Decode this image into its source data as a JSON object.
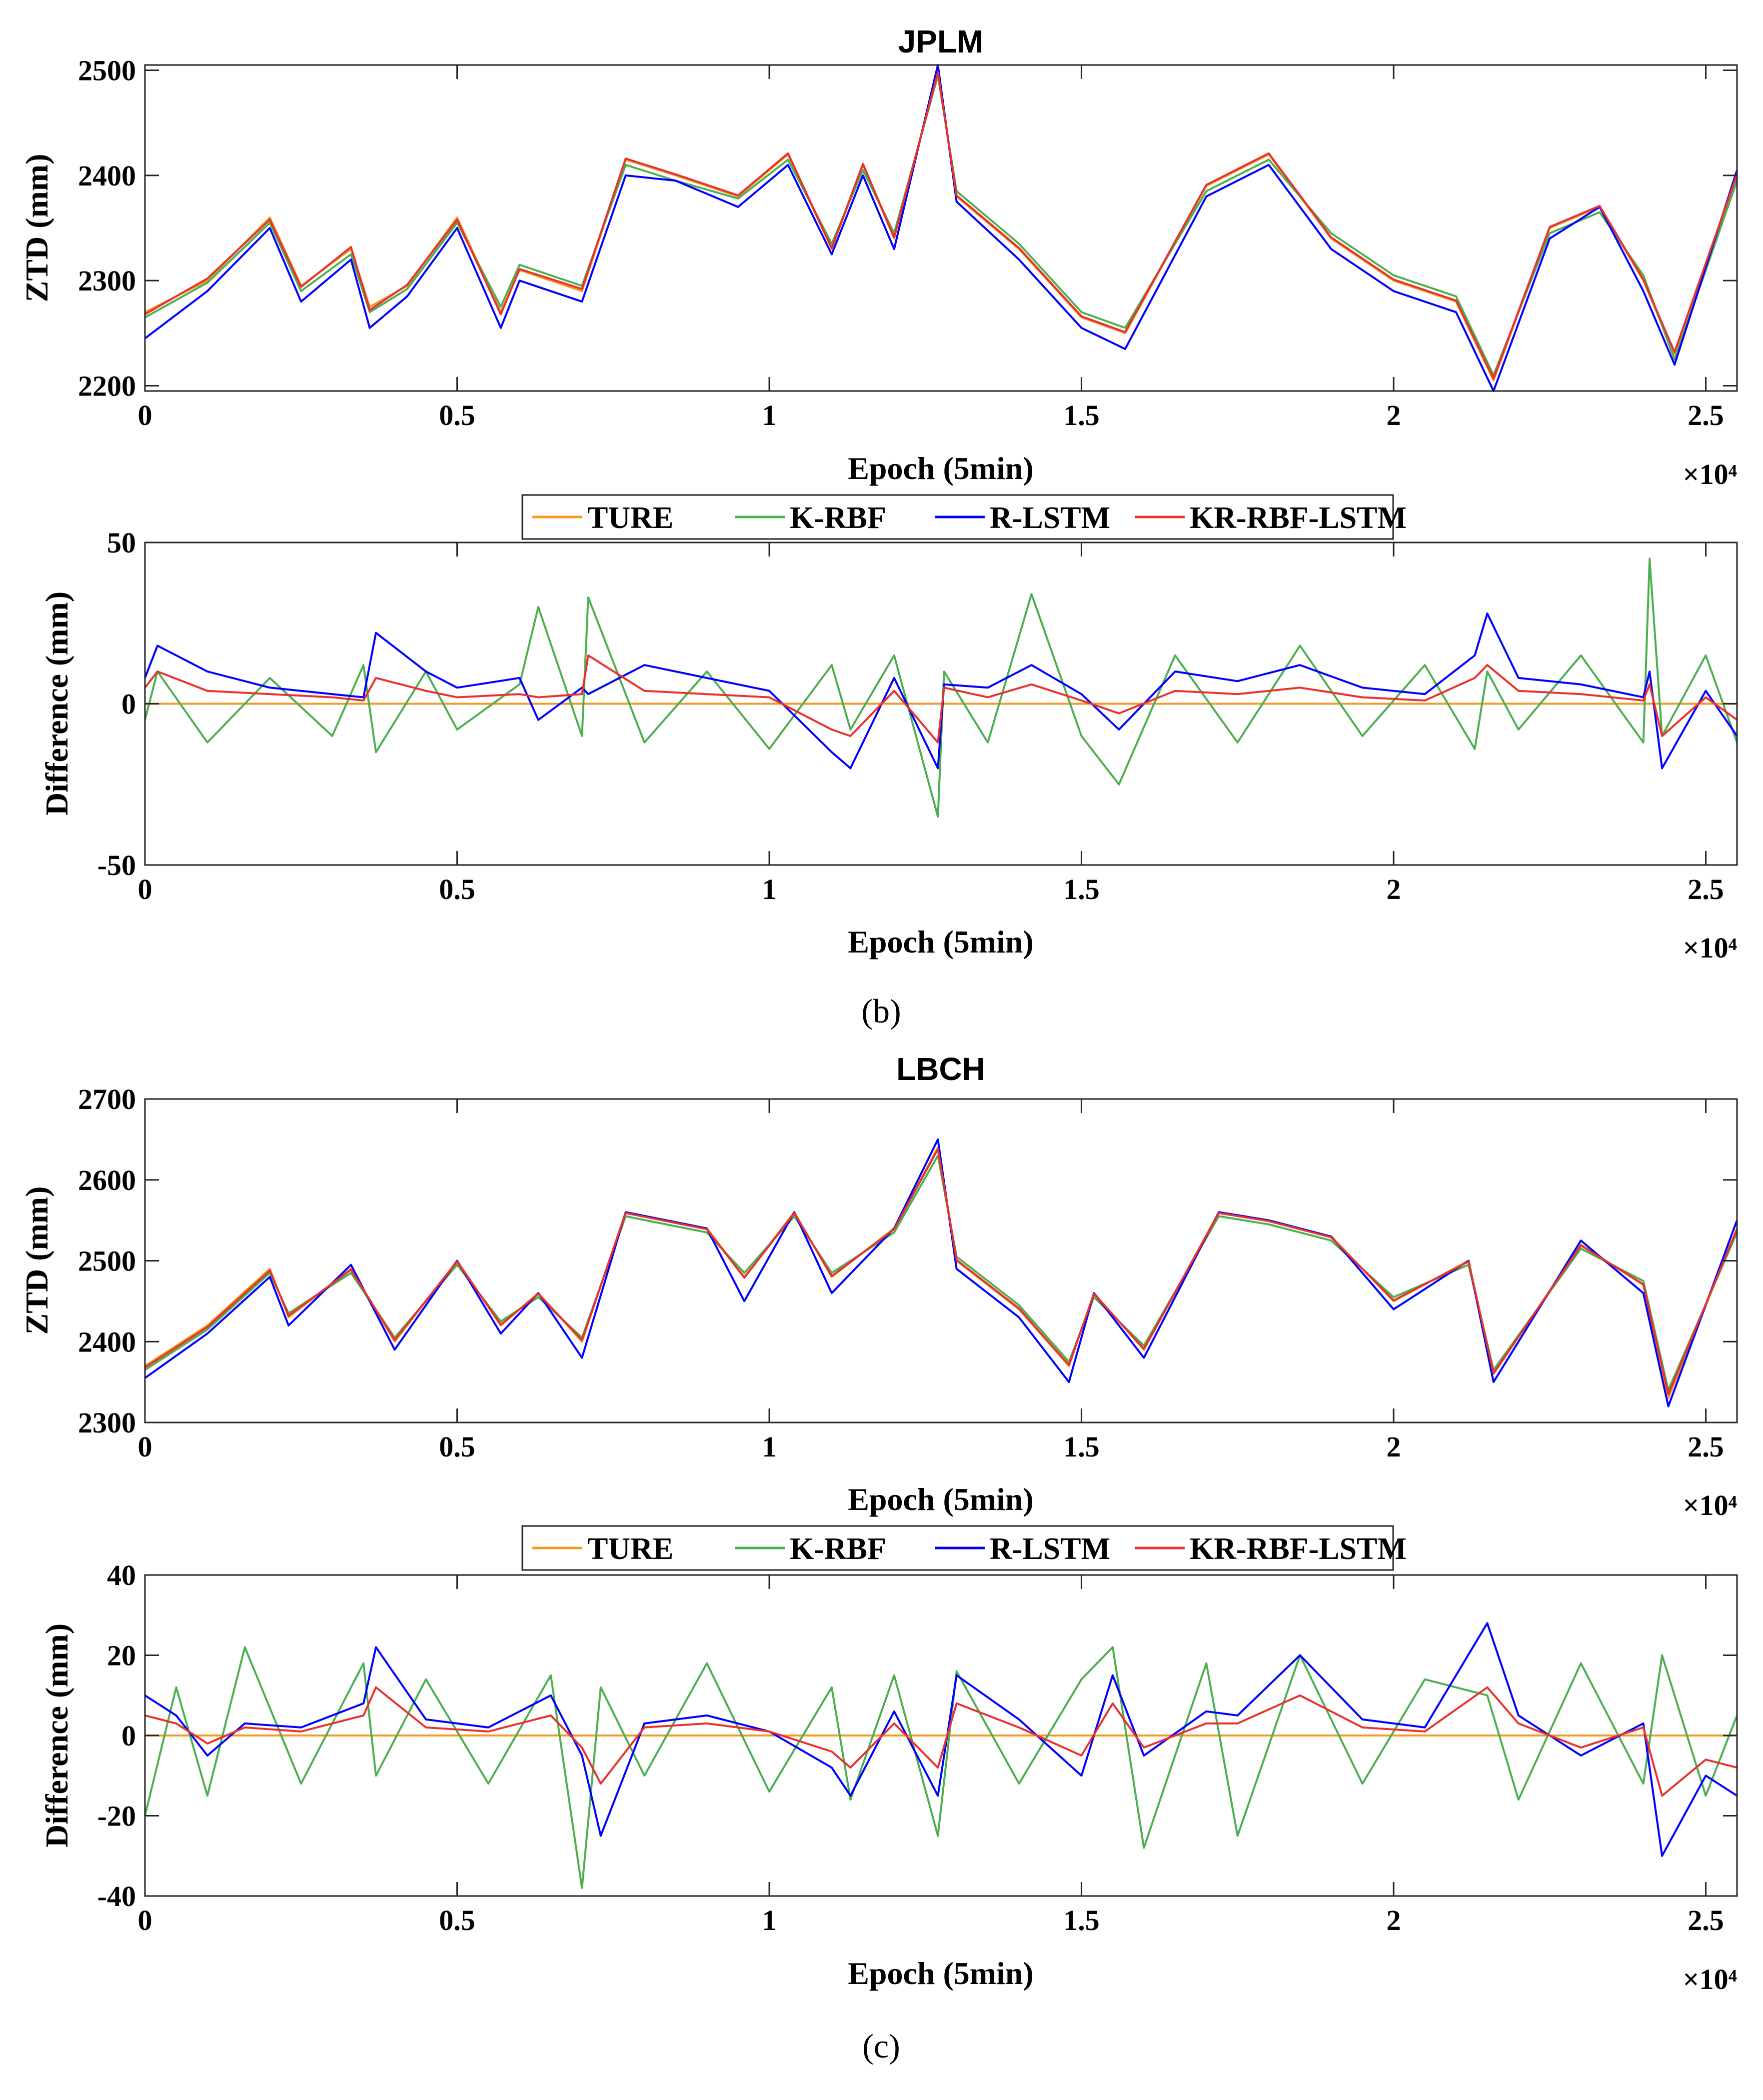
{
  "panel_labels": [
    "(b)",
    "(c)"
  ],
  "legend_entries": [
    "TURE",
    "K-RBF",
    "R-LSTM",
    "KR-RBF-LSTM"
  ],
  "colors": {
    "TURE": "#f39a24",
    "K-RBF": "#4caf50",
    "R-LSTM": "#0000ff",
    "KR-RBF-LSTM": "#e8322e",
    "axis": "#262626"
  },
  "chart_data": [
    {
      "type": "line",
      "title": "JPLM",
      "xlabel": "Epoch (5min)",
      "ylabel": "ZTD (mm)",
      "x_exponent": "×10⁴",
      "xlim": [
        0,
        2.55
      ],
      "ylim": [
        2195,
        2505
      ],
      "xticks": [
        0,
        0.5,
        1,
        1.5,
        2,
        2.5
      ],
      "xtick_labels": [
        "0",
        "0.5",
        "1",
        "1.5",
        "2",
        "2.5"
      ],
      "yticks": [
        2200,
        2300,
        2400,
        2500
      ],
      "ytick_labels": [
        "2200",
        "2300",
        "2400",
        "2500"
      ],
      "legend": false,
      "x": [
        0,
        0.1,
        0.2,
        0.25,
        0.33,
        0.36,
        0.42,
        0.5,
        0.57,
        0.6,
        0.7,
        0.77,
        0.85,
        0.95,
        1.03,
        1.1,
        1.15,
        1.2,
        1.27,
        1.3,
        1.4,
        1.5,
        1.57,
        1.7,
        1.8,
        1.9,
        2.0,
        2.1,
        2.16,
        2.25,
        2.33,
        2.4,
        2.45,
        2.55
      ],
      "series": [
        {
          "name": "TURE",
          "values": [
            2270,
            2300,
            2360,
            2295,
            2330,
            2275,
            2295,
            2360,
            2270,
            2310,
            2290,
            2415,
            2400,
            2380,
            2420,
            2330,
            2410,
            2340,
            2500,
            2380,
            2330,
            2265,
            2250,
            2390,
            2420,
            2340,
            2300,
            2280,
            2205,
            2350,
            2370,
            2300,
            2230,
            2400
          ]
        },
        {
          "name": "K-RBF",
          "values": [
            2265,
            2298,
            2355,
            2290,
            2325,
            2270,
            2292,
            2355,
            2275,
            2315,
            2295,
            2410,
            2395,
            2378,
            2415,
            2335,
            2405,
            2345,
            2495,
            2385,
            2335,
            2270,
            2255,
            2385,
            2415,
            2345,
            2305,
            2285,
            2210,
            2345,
            2365,
            2305,
            2225,
            2395
          ]
        },
        {
          "name": "R-LSTM",
          "values": [
            2245,
            2290,
            2350,
            2280,
            2320,
            2255,
            2285,
            2350,
            2255,
            2300,
            2280,
            2400,
            2395,
            2370,
            2410,
            2325,
            2400,
            2330,
            2505,
            2375,
            2320,
            2255,
            2235,
            2380,
            2410,
            2330,
            2290,
            2270,
            2195,
            2340,
            2370,
            2290,
            2220,
            2405
          ]
        },
        {
          "name": "KR-RBF-LSTM",
          "values": [
            2268,
            2302,
            2358,
            2294,
            2332,
            2272,
            2296,
            2358,
            2268,
            2311,
            2292,
            2416,
            2401,
            2381,
            2421,
            2331,
            2411,
            2341,
            2498,
            2381,
            2331,
            2266,
            2251,
            2391,
            2421,
            2341,
            2301,
            2281,
            2207,
            2351,
            2371,
            2301,
            2232,
            2401
          ]
        }
      ]
    },
    {
      "type": "line",
      "title": "",
      "xlabel": "Epoch (5min)",
      "ylabel": "Difference (mm)",
      "x_exponent": "×10⁴",
      "xlim": [
        0,
        2.55
      ],
      "ylim": [
        -50,
        50
      ],
      "xticks": [
        0,
        0.5,
        1,
        1.5,
        2,
        2.5
      ],
      "xtick_labels": [
        "0",
        "0.5",
        "1",
        "1.5",
        "2",
        "2.5"
      ],
      "yticks": [
        -50,
        0,
        50
      ],
      "ytick_labels": [
        "-50",
        "0",
        "50"
      ],
      "legend": true,
      "x": [
        0,
        0.02,
        0.1,
        0.2,
        0.3,
        0.35,
        0.37,
        0.45,
        0.5,
        0.6,
        0.63,
        0.7,
        0.71,
        0.8,
        0.9,
        1.0,
        1.1,
        1.13,
        1.2,
        1.27,
        1.28,
        1.35,
        1.42,
        1.5,
        1.56,
        1.65,
        1.75,
        1.85,
        1.95,
        2.05,
        2.13,
        2.15,
        2.2,
        2.3,
        2.4,
        2.41,
        2.43,
        2.5,
        2.55
      ],
      "series": [
        {
          "name": "TURE",
          "values": [
            0,
            0,
            0,
            0,
            0,
            0,
            0,
            0,
            0,
            0,
            0,
            0,
            0,
            0,
            0,
            0,
            0,
            0,
            0,
            0,
            0,
            0,
            0,
            0,
            0,
            0,
            0,
            0,
            0,
            0,
            0,
            0,
            0,
            0,
            0,
            0,
            0,
            0,
            0
          ]
        },
        {
          "name": "K-RBF",
          "values": [
            -5,
            10,
            -12,
            8,
            -10,
            12,
            -15,
            10,
            -8,
            6,
            30,
            -10,
            33,
            -12,
            10,
            -14,
            12,
            -8,
            15,
            -35,
            10,
            -12,
            34,
            -10,
            -25,
            15,
            -12,
            18,
            -10,
            12,
            -14,
            10,
            -8,
            15,
            -12,
            45,
            -10,
            15,
            -12
          ]
        },
        {
          "name": "R-LSTM",
          "values": [
            8,
            18,
            10,
            5,
            3,
            2,
            22,
            10,
            5,
            8,
            -5,
            5,
            3,
            12,
            8,
            4,
            -15,
            -20,
            8,
            -20,
            6,
            5,
            12,
            3,
            -8,
            10,
            7,
            12,
            5,
            3,
            15,
            28,
            8,
            6,
            2,
            10,
            -20,
            4,
            -10
          ]
        },
        {
          "name": "KR-RBF-LSTM",
          "values": [
            5,
            10,
            4,
            3,
            2,
            1,
            8,
            4,
            2,
            3,
            2,
            3,
            15,
            4,
            3,
            2,
            -8,
            -10,
            4,
            -12,
            5,
            2,
            6,
            1,
            -3,
            4,
            3,
            5,
            2,
            1,
            8,
            12,
            4,
            3,
            1,
            6,
            -10,
            2,
            -5
          ]
        }
      ]
    },
    {
      "type": "line",
      "title": "LBCH",
      "xlabel": "Epoch (5min)",
      "ylabel": "ZTD (mm)",
      "x_exponent": "×10⁴",
      "xlim": [
        0,
        2.55
      ],
      "ylim": [
        2300,
        2700
      ],
      "xticks": [
        0,
        0.5,
        1,
        1.5,
        2,
        2.5
      ],
      "xtick_labels": [
        "0",
        "0.5",
        "1",
        "1.5",
        "2",
        "2.5"
      ],
      "yticks": [
        2300,
        2400,
        2500,
        2600,
        2700
      ],
      "ytick_labels": [
        "2300",
        "2400",
        "2500",
        "2600",
        "2700"
      ],
      "legend": false,
      "x": [
        0,
        0.1,
        0.2,
        0.23,
        0.33,
        0.4,
        0.5,
        0.57,
        0.63,
        0.7,
        0.77,
        0.9,
        0.96,
        1.04,
        1.1,
        1.2,
        1.27,
        1.3,
        1.4,
        1.48,
        1.52,
        1.6,
        1.72,
        1.8,
        1.9,
        2.0,
        2.12,
        2.16,
        2.3,
        2.4,
        2.44,
        2.55
      ],
      "series": [
        {
          "name": "TURE",
          "values": [
            2370,
            2420,
            2490,
            2430,
            2490,
            2400,
            2500,
            2420,
            2460,
            2400,
            2560,
            2540,
            2480,
            2560,
            2480,
            2540,
            2640,
            2500,
            2440,
            2370,
            2460,
            2390,
            2560,
            2550,
            2530,
            2450,
            2500,
            2360,
            2520,
            2470,
            2330,
            2540
          ]
        },
        {
          "name": "K-RBF",
          "values": [
            2365,
            2415,
            2485,
            2435,
            2485,
            2405,
            2495,
            2425,
            2455,
            2405,
            2555,
            2535,
            2485,
            2555,
            2485,
            2535,
            2630,
            2505,
            2445,
            2375,
            2455,
            2395,
            2555,
            2545,
            2525,
            2455,
            2495,
            2365,
            2515,
            2475,
            2340,
            2535
          ]
        },
        {
          "name": "R-LSTM",
          "values": [
            2355,
            2410,
            2480,
            2420,
            2495,
            2390,
            2500,
            2410,
            2460,
            2380,
            2560,
            2540,
            2450,
            2560,
            2460,
            2540,
            2650,
            2490,
            2430,
            2350,
            2460,
            2380,
            2560,
            2550,
            2530,
            2440,
            2500,
            2350,
            2525,
            2460,
            2320,
            2550
          ]
        },
        {
          "name": "KR-RBF-LSTM",
          "values": [
            2368,
            2418,
            2488,
            2432,
            2489,
            2402,
            2499,
            2421,
            2459,
            2402,
            2559,
            2539,
            2479,
            2559,
            2481,
            2539,
            2638,
            2501,
            2441,
            2371,
            2459,
            2391,
            2559,
            2549,
            2529,
            2451,
            2499,
            2361,
            2519,
            2471,
            2335,
            2539
          ]
        }
      ]
    },
    {
      "type": "line",
      "title": "",
      "xlabel": "Epoch (5min)",
      "ylabel": "Difference (mm)",
      "x_exponent": "×10⁴",
      "xlim": [
        0,
        2.55
      ],
      "ylim": [
        -40,
        40
      ],
      "xticks": [
        0,
        0.5,
        1,
        1.5,
        2,
        2.5
      ],
      "xtick_labels": [
        "0",
        "0.5",
        "1",
        "1.5",
        "2",
        "2.5"
      ],
      "yticks": [
        -40,
        -20,
        0,
        20,
        40
      ],
      "ytick_labels": [
        "-40",
        "-20",
        "0",
        "20",
        "40"
      ],
      "legend": true,
      "x": [
        0,
        0.05,
        0.1,
        0.16,
        0.25,
        0.35,
        0.37,
        0.45,
        0.55,
        0.65,
        0.7,
        0.73,
        0.8,
        0.9,
        1.0,
        1.1,
        1.13,
        1.2,
        1.27,
        1.3,
        1.4,
        1.5,
        1.55,
        1.6,
        1.7,
        1.75,
        1.85,
        1.95,
        2.05,
        2.15,
        2.2,
        2.3,
        2.4,
        2.43,
        2.5,
        2.55
      ],
      "series": [
        {
          "name": "TURE",
          "values": [
            0,
            0,
            0,
            0,
            0,
            0,
            0,
            0,
            0,
            0,
            0,
            0,
            0,
            0,
            0,
            0,
            0,
            0,
            0,
            0,
            0,
            0,
            0,
            0,
            0,
            0,
            0,
            0,
            0,
            0,
            0,
            0,
            0,
            0,
            0,
            0
          ]
        },
        {
          "name": "K-RBF",
          "values": [
            -20,
            12,
            -15,
            22,
            -12,
            18,
            -10,
            14,
            -12,
            15,
            -38,
            12,
            -10,
            18,
            -14,
            12,
            -16,
            15,
            -25,
            16,
            -12,
            14,
            22,
            -28,
            18,
            -25,
            20,
            -12,
            14,
            10,
            -16,
            18,
            -12,
            20,
            -15,
            5
          ]
        },
        {
          "name": "R-LSTM",
          "values": [
            10,
            5,
            -5,
            3,
            2,
            8,
            22,
            4,
            2,
            10,
            -5,
            -25,
            3,
            5,
            1,
            -8,
            -15,
            6,
            -15,
            15,
            4,
            -10,
            15,
            -5,
            6,
            5,
            20,
            4,
            2,
            28,
            5,
            -5,
            3,
            -30,
            -10,
            -15
          ]
        },
        {
          "name": "KR-RBF-LSTM",
          "values": [
            5,
            3,
            -2,
            2,
            1,
            5,
            12,
            2,
            1,
            5,
            -3,
            -12,
            2,
            3,
            1,
            -4,
            -8,
            3,
            -8,
            8,
            2,
            -5,
            8,
            -3,
            3,
            3,
            10,
            2,
            1,
            12,
            3,
            -3,
            2,
            -15,
            -6,
            -8
          ]
        }
      ]
    }
  ]
}
